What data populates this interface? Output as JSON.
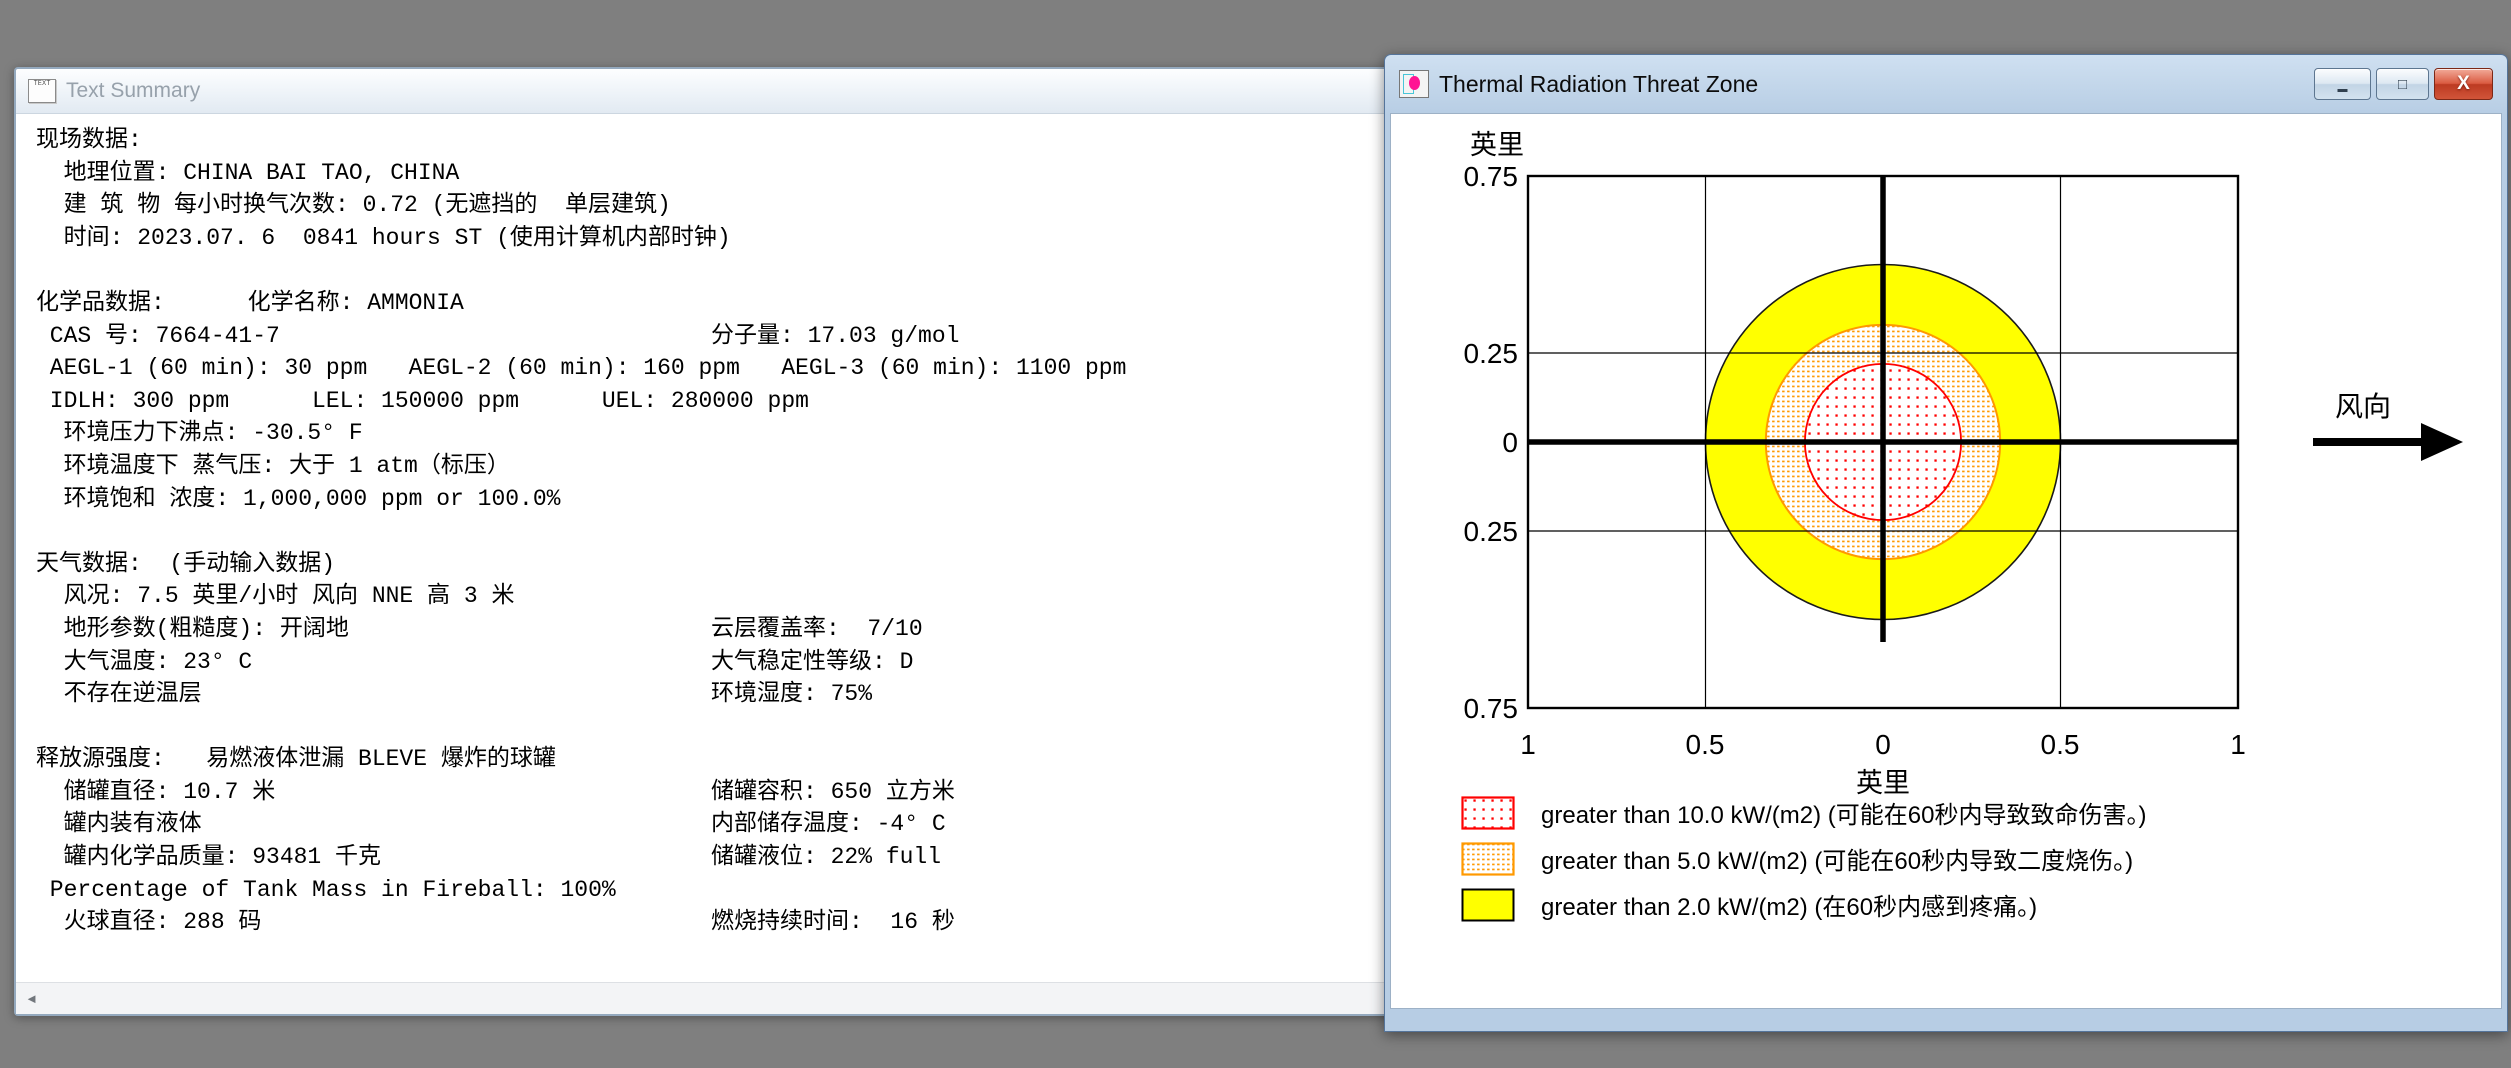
{
  "desktop": {
    "bg_color": "#7f7f7f"
  },
  "text_summary_window": {
    "title": "Text Summary",
    "icon_label": "TEXT",
    "scrollbar": {
      "left_arrow": "◄"
    },
    "lines": [
      {
        "left": "现场数据:"
      },
      {
        "left": "  地理位置: CHINA BAI TAO, CHINA"
      },
      {
        "left": "  建 筑 物 每小时换气次数: 0.72 (无遮挡的  单层建筑)"
      },
      {
        "left": "  时间: 2023.07. 6  0841 hours ST (使用计算机内部时钟)"
      },
      {
        "left": ""
      },
      {
        "left": "化学品数据:      化学名称: AMMONIA"
      },
      {
        "left": " CAS 号: 7664-41-7",
        "right": "分子量: 17.03 g/mol"
      },
      {
        "left": " AEGL-1 (60 min): 30 ppm   AEGL-2 (60 min): 160 ppm   AEGL-3 (60 min): 1100 ppm"
      },
      {
        "left": " IDLH: 300 ppm      LEL: 150000 ppm      UEL: 280000 ppm"
      },
      {
        "left": "  环境压力下沸点: -30.5° F"
      },
      {
        "left": "  环境温度下 蒸气压: 大于 1 atm（标压）"
      },
      {
        "left": "  环境饱和 浓度: 1,000,000 ppm or 100.0%"
      },
      {
        "left": ""
      },
      {
        "left": "天气数据:  (手动输入数据)"
      },
      {
        "left": "  风况: 7.5 英里/小时 风向 NNE 高 3 米"
      },
      {
        "left": "  地形参数(粗糙度): 开阔地",
        "right": "云层覆盖率:  7/10"
      },
      {
        "left": "  大气温度: 23° C",
        "right": "大气稳定性等级: D"
      },
      {
        "left": "  不存在逆温层",
        "right": "环境湿度: 75%"
      },
      {
        "left": ""
      },
      {
        "left": "释放源强度:   易燃液体泄漏 BLEVE 爆炸的球罐"
      },
      {
        "left": "  储罐直径: 10.7 米",
        "right": "储罐容积: 650 立方米"
      },
      {
        "left": "  罐内装有液体",
        "right": "内部储存温度: -4° C"
      },
      {
        "left": "  罐内化学品质量: 93481 千克",
        "right": "储罐液位: 22% full"
      },
      {
        "left": " Percentage of Tank Mass in Fireball: 100%"
      },
      {
        "left": "  火球直径: 288 码",
        "right": "燃烧持续时间:  16 秒"
      }
    ]
  },
  "threat_window": {
    "title": "Thermal Radiation Threat Zone",
    "buttons": {
      "minimize": "▬",
      "maximize": "□",
      "close": "X"
    }
  },
  "chart_data": {
    "type": "area",
    "title": "Thermal Radiation Threat Zone",
    "xlabel": "英里",
    "ylabel": "英里",
    "xlim": [
      -1,
      1
    ],
    "ylim": [
      -0.75,
      0.75
    ],
    "x_ticks": [
      "1",
      "0.5",
      "0",
      "0.5",
      "1"
    ],
    "y_ticks": [
      "0.75",
      "0.25",
      "0",
      "0.25",
      "0.75"
    ],
    "grid": "on",
    "center": [
      0,
      0
    ],
    "wind_direction_label": "风向",
    "zones": [
      {
        "threshold_kw_m2": 10.0,
        "label": "greater than 10.0 kW/(m2) (可能在60秒内导致致命伤害。)",
        "radius_miles": 0.22,
        "color": "#ff0000",
        "fill_style": "red-dots"
      },
      {
        "threshold_kw_m2": 5.0,
        "label": "greater than 5.0 kW/(m2) (可能在60秒内导致二度烧伤。)",
        "radius_miles": 0.33,
        "color": "#ff9900",
        "fill_style": "orange-dots"
      },
      {
        "threshold_kw_m2": 2.0,
        "label": "greater than 2.0 kW/(m2) (在60秒内感到疼痛。)",
        "radius_miles": 0.5,
        "color": "#ffff00",
        "fill_style": "solid-yellow"
      }
    ]
  }
}
